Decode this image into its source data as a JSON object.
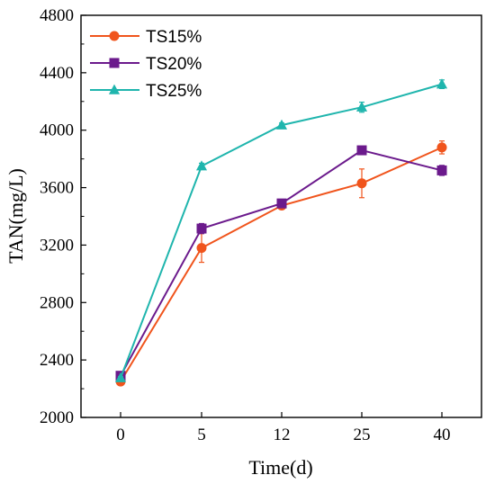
{
  "chart_data": {
    "type": "line",
    "categories": [
      "0",
      "5",
      "12",
      "25",
      "40"
    ],
    "xlabel": "Time(d)",
    "ylabel": "TAN(mg/L)",
    "ylim": [
      2000,
      4800
    ],
    "yticks": [
      2000,
      2400,
      2800,
      3200,
      3600,
      4000,
      4400,
      4800
    ],
    "legend_position": "top-left",
    "grid": false,
    "series": [
      {
        "name": "TS15%",
        "marker": "circle",
        "color": "#f0541c",
        "values": [
          2250,
          3180,
          3475,
          3630,
          3880
        ],
        "errors": [
          15,
          100,
          20,
          100,
          45
        ]
      },
      {
        "name": "TS20%",
        "marker": "square",
        "color": "#6b1a8c",
        "values": [
          2290,
          3315,
          3490,
          3860,
          3720
        ],
        "errors": [
          15,
          35,
          15,
          20,
          35
        ]
      },
      {
        "name": "TS25%",
        "marker": "triangle",
        "color": "#1fb5ad",
        "values": [
          2275,
          3750,
          4035,
          4160,
          4320
        ],
        "errors": [
          10,
          20,
          15,
          35,
          30
        ]
      }
    ]
  }
}
